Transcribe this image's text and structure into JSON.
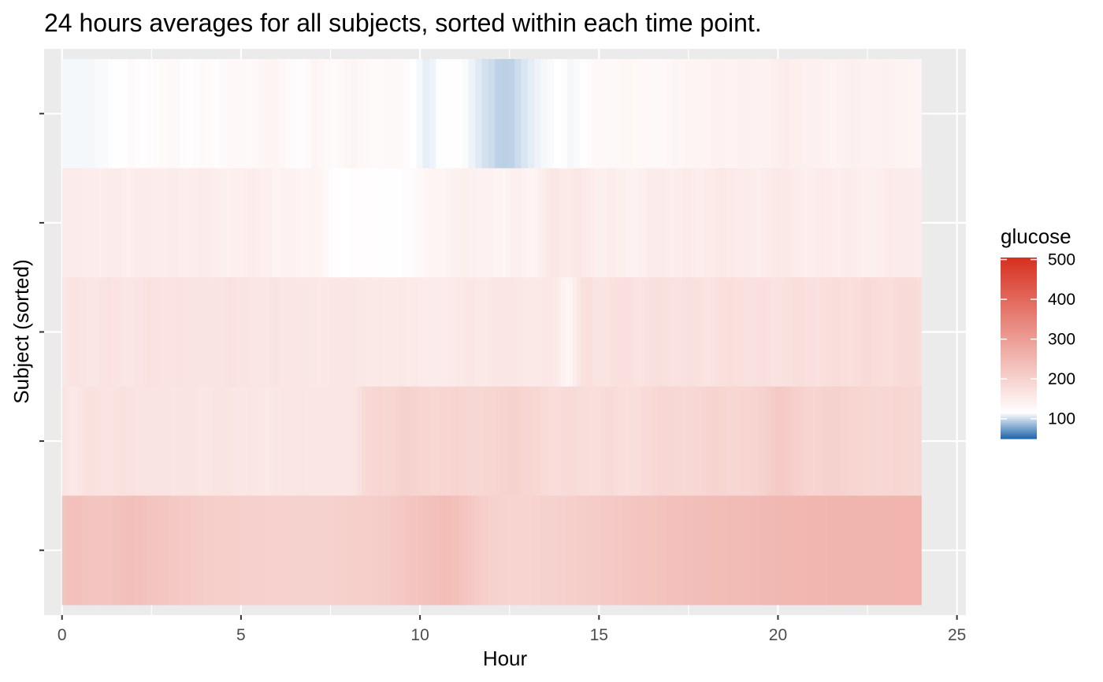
{
  "chart_data": {
    "type": "heatmap",
    "title": "24 hours averages for all subjects, sorted within each time point.",
    "xlabel": "Hour",
    "ylabel": "Subject (sorted)",
    "xlim": [
      -0.5,
      25.25
    ],
    "x_ticks": [
      0,
      5,
      10,
      15,
      20,
      25
    ],
    "x_tick_labels": [
      "0",
      "5",
      "10",
      "15",
      "20",
      "25"
    ],
    "x_range": [
      0,
      24
    ],
    "rows": 5,
    "rows_order": "top-to-bottom",
    "y_tick_labels": [
      "",
      "",
      "",
      "",
      ""
    ],
    "grid": true,
    "legend": {
      "title": "glucose",
      "position": "right",
      "min": 50,
      "max": 505,
      "ticks": [
        100,
        200,
        300,
        400,
        500
      ],
      "tick_labels": [
        "100",
        "200",
        "300",
        "400",
        "500"
      ],
      "colors": {
        "low": "#2166ac",
        "mid": "#ffffff",
        "high": "#d7301f"
      },
      "midpoint": 115
    },
    "values": [
      [
        112,
        112,
        112,
        112,
        112,
        113,
        113,
        114,
        116,
        118,
        125,
        121,
        118,
        120,
        122,
        124,
        128,
        126,
        120,
        118,
        122,
        125,
        123,
        121,
        125,
        127,
        127,
        126,
        124,
        128,
        132,
        135,
        134,
        130,
        125,
        122,
        120,
        124,
        133,
        131,
        126,
        124,
        128,
        132,
        133,
        130,
        127,
        124,
        125,
        129,
        128,
        126,
        123,
        115,
        112,
        108,
        110,
        114,
        116,
        118,
        116,
        113,
        110,
        106,
        102,
        100,
        96,
        95,
        96,
        100,
        104,
        107,
        110,
        112,
        113,
        115,
        114,
        112,
        113,
        118,
        124,
        128,
        127,
        126,
        128,
        130,
        131,
        129,
        128,
        127,
        126,
        129,
        131,
        133,
        132,
        135,
        136,
        134,
        136,
        139,
        139,
        137,
        138,
        141,
        142,
        140,
        139,
        140,
        143,
        147,
        148,
        146,
        143,
        141,
        141,
        142,
        139,
        138,
        139,
        141,
        143,
        142,
        140,
        139,
        140,
        142,
        140,
        138,
        137,
        136,
        133
      ],
      [
        150,
        151,
        152,
        151,
        150,
        149,
        150,
        149,
        148,
        147,
        149,
        151,
        152,
        153,
        150,
        148,
        146,
        148,
        150,
        151,
        152,
        151,
        149,
        148,
        148,
        148,
        150,
        151,
        150,
        149,
        147,
        148,
        149,
        152,
        155,
        153,
        150,
        149,
        147,
        146,
        144,
        142,
        143,
        145,
        146,
        147,
        148,
        150,
        148,
        146,
        145,
        144,
        138,
        136,
        139,
        140,
        141,
        139,
        137,
        136,
        136,
        137,
        137,
        135,
        132,
        127,
        121,
        117,
        116,
        115,
        115,
        117,
        118,
        118,
        118,
        118,
        118,
        117,
        118,
        118,
        117,
        116,
        117,
        119,
        120,
        121,
        122,
        125,
        127,
        130,
        132,
        134,
        136,
        135,
        134,
        138,
        140,
        141,
        142,
        143,
        144,
        142,
        141,
        140,
        139,
        140,
        139,
        138,
        137,
        136,
        140,
        144,
        145,
        143,
        140,
        137,
        136,
        138,
        144,
        149,
        156,
        162,
        160,
        156,
        155,
        155,
        157,
        158,
        158,
        155,
        152,
        148,
        145,
        144,
        146,
        148,
        148,
        146,
        144,
        143,
        141,
        139,
        141,
        143,
        145,
        150,
        152,
        153,
        152,
        151,
        148,
        147,
        149,
        152,
        154,
        155,
        150,
        147,
        147,
        150,
        153,
        155,
        157,
        158,
        156,
        155,
        154,
        153,
        152,
        151,
        150,
        148,
        146,
        148,
        152,
        155,
        157,
        158,
        157,
        156,
        155,
        152,
        149,
        147,
        146,
        147,
        149,
        152,
        154,
        153,
        150,
        147,
        146,
        148,
        150,
        151,
        149,
        147,
        146,
        145,
        144,
        145,
        147,
        149,
        152,
        154,
        153,
        152,
        152,
        151,
        150,
        149,
        148
      ],
      [
        160,
        164,
        168,
        170,
        168,
        165,
        163,
        162,
        163,
        165,
        168,
        170,
        168,
        166,
        164,
        163,
        163,
        164,
        166,
        168,
        170,
        172,
        170,
        169,
        168,
        168,
        167,
        168,
        169,
        170,
        168,
        166,
        165,
        166,
        167,
        166,
        165,
        165,
        166,
        168,
        170,
        171,
        169,
        168,
        166,
        165,
        164,
        163,
        162,
        162,
        163,
        164,
        165,
        164,
        163,
        162,
        161,
        160,
        160,
        161,
        160,
        159,
        158,
        157,
        158,
        159,
        160,
        161,
        162,
        163,
        162,
        161,
        160,
        159,
        158,
        157,
        156,
        157,
        158,
        157,
        156,
        156,
        157,
        158,
        157,
        155,
        155,
        156,
        154,
        152,
        151,
        150,
        151,
        152,
        153,
        154,
        155,
        156,
        157,
        158,
        160,
        161,
        159,
        157,
        156,
        158,
        160,
        161,
        162,
        161,
        160,
        160,
        159,
        158,
        157,
        156,
        156,
        157,
        158,
        159,
        158,
        156,
        150,
        140,
        135,
        138,
        148,
        160,
        172,
        175,
        173,
        168,
        165,
        166,
        168,
        170,
        172,
        173,
        175,
        173,
        171,
        170,
        168,
        169,
        171,
        173,
        175,
        174,
        172,
        171,
        170,
        169,
        170,
        172,
        173,
        174,
        172,
        170,
        168,
        167,
        169,
        171,
        173,
        175,
        177,
        176,
        174,
        173,
        172,
        171,
        172,
        173,
        174,
        173,
        171,
        170,
        169,
        170,
        172,
        174,
        176,
        178,
        177,
        175,
        174,
        173,
        172,
        174,
        176,
        178,
        179,
        180,
        178,
        176,
        174,
        176,
        178,
        181,
        183,
        182,
        181,
        180,
        178,
        177,
        178,
        180,
        181,
        182,
        183,
        184,
        182,
        180
      ],
      [
        168,
        162,
        156,
        158,
        164,
        170,
        172,
        171,
        170,
        169,
        168,
        167,
        168,
        170,
        172,
        171,
        170,
        169,
        168,
        167,
        166,
        165,
        165,
        166,
        167,
        166,
        165,
        164,
        165,
        166,
        167,
        166,
        165,
        164,
        163,
        163,
        164,
        165,
        166,
        166,
        165,
        164,
        163,
        162,
        162,
        163,
        164,
        163,
        160,
        158,
        157,
        158,
        160,
        162,
        164,
        163,
        162,
        162,
        163,
        164,
        163,
        162,
        161,
        160,
        160,
        161,
        162,
        163,
        163,
        162,
        161,
        160,
        165,
        175,
        185,
        188,
        190,
        192,
        193,
        192,
        191,
        193,
        196,
        198,
        200,
        199,
        197,
        196,
        195,
        194,
        193,
        192,
        192,
        193,
        194,
        195,
        196,
        197,
        195,
        193,
        191,
        190,
        191,
        192,
        193,
        194,
        195,
        196,
        197,
        198,
        199,
        200,
        198,
        196,
        194,
        193,
        192,
        190,
        186,
        182,
        180,
        179,
        180,
        182,
        183,
        184,
        183,
        181,
        180,
        179,
        178,
        178,
        179,
        181,
        183,
        182,
        180,
        178,
        176,
        175,
        176,
        178,
        180,
        182,
        184,
        186,
        188,
        190,
        192,
        191,
        190,
        189,
        188,
        187,
        188,
        189,
        190,
        192,
        194,
        196,
        198,
        197,
        195,
        193,
        192,
        191,
        192,
        193,
        194,
        195,
        196,
        198,
        200,
        204,
        208,
        212,
        214,
        215,
        213,
        210,
        207,
        204,
        201,
        198,
        196,
        195,
        196,
        198,
        200,
        201,
        200,
        199,
        198,
        197,
        196,
        195,
        194,
        193,
        192,
        191,
        190,
        189,
        190,
        191,
        192,
        193,
        193,
        192,
        191,
        190,
        189,
        190
      ],
      [
        228,
        232,
        234,
        233,
        231,
        228,
        226,
        225,
        224,
        224,
        225,
        226,
        228,
        230,
        232,
        234,
        236,
        235,
        233,
        231,
        229,
        228,
        226,
        224,
        223,
        222,
        220,
        219,
        218,
        217,
        216,
        214,
        212,
        211,
        210,
        209,
        208,
        208,
        207,
        207,
        206,
        206,
        205,
        205,
        204,
        204,
        203,
        203,
        203,
        203,
        202,
        202,
        202,
        201,
        201,
        201,
        200,
        200,
        200,
        200,
        200,
        200,
        200,
        200,
        200,
        201,
        202,
        203,
        203,
        204,
        205,
        205,
        206,
        206,
        207,
        207,
        208,
        209,
        210,
        211,
        212,
        214,
        216,
        218,
        220,
        222,
        224,
        226,
        228,
        230,
        232,
        234,
        236,
        238,
        240,
        238,
        236,
        232,
        228,
        224,
        220,
        216,
        212,
        208,
        205,
        202,
        200,
        199,
        198,
        197,
        196,
        196,
        196,
        196,
        196,
        196,
        197,
        198,
        199,
        200,
        201,
        202,
        203,
        204,
        205,
        206,
        207,
        208,
        209,
        210,
        211,
        212,
        213,
        214,
        215,
        216,
        218,
        219,
        220,
        221,
        222,
        223,
        224,
        225,
        226,
        227,
        228,
        229,
        230,
        231,
        232,
        233,
        234,
        235,
        236,
        236,
        237,
        238,
        238,
        239,
        240,
        240,
        241,
        241,
        242,
        242,
        243,
        243,
        244,
        244,
        245,
        245,
        246,
        246,
        247,
        247,
        248,
        248,
        249,
        249,
        250,
        250,
        251,
        251,
        252,
        252,
        253,
        253,
        253,
        254,
        254,
        254,
        254,
        255,
        255,
        255,
        255,
        255,
        255,
        255,
        255,
        255,
        255,
        255,
        255,
        255,
        255,
        255,
        255,
        255,
        255,
        255
      ]
    ]
  }
}
